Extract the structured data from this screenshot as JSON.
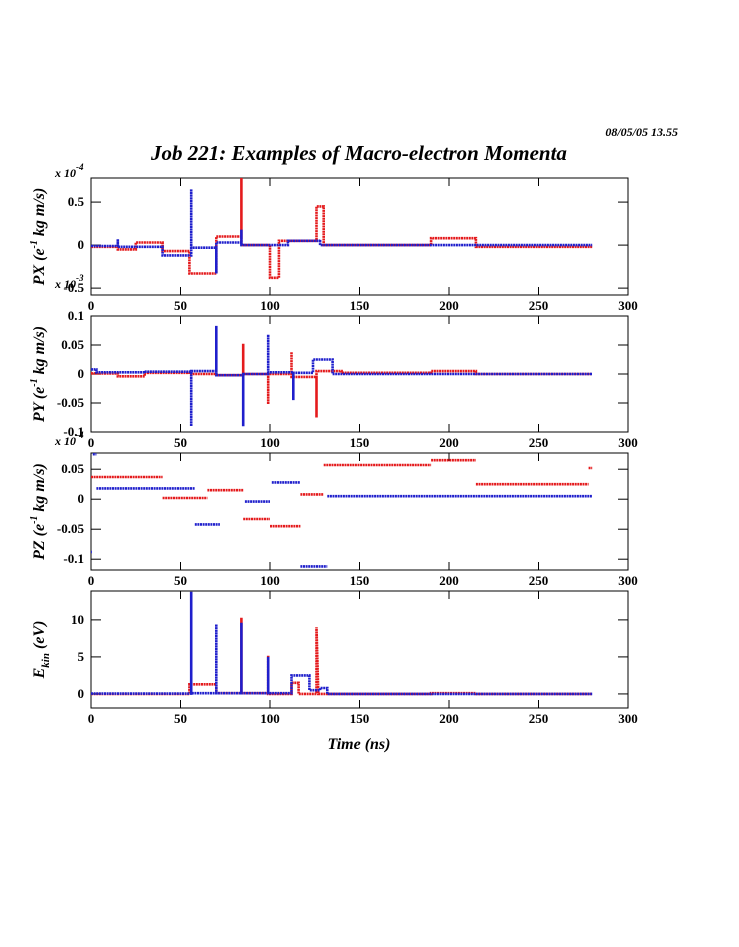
{
  "timestamp": "08/05/05   13.55",
  "title": "Job 221: Examples of Macro-electron Momenta",
  "chart_data": [
    {
      "type": "line",
      "ylabel": {
        "main": "PX (e",
        "sup": "-1",
        "rest": " kg m/s)"
      },
      "multiplier": {
        "main": "x 10",
        "sup": "-4"
      },
      "xlim": [
        0,
        300
      ],
      "xticks": [
        0,
        50,
        100,
        150,
        200,
        250,
        300
      ],
      "ylim": [
        -0.58,
        0.78
      ],
      "yticks": [
        -0.5,
        0,
        0.5
      ],
      "series": [
        {
          "color": "#e41a1c",
          "x": [
            0,
            15,
            15,
            25,
            25,
            40,
            40,
            55,
            55,
            70,
            70,
            84,
            84,
            84,
            100,
            100,
            105,
            105,
            126,
            126,
            130,
            130,
            190,
            190,
            215,
            215,
            280
          ],
          "values": [
            -0.02,
            -0.02,
            -0.05,
            -0.05,
            0.03,
            0.03,
            -0.07,
            -0.07,
            -0.33,
            -0.33,
            0.1,
            0.1,
            0.78,
            0,
            0,
            -0.38,
            -0.38,
            0.05,
            0.05,
            0.45,
            0.45,
            0,
            0,
            0.08,
            0.08,
            -0.02,
            -0.02
          ]
        },
        {
          "color": "#1f1fcc",
          "x": [
            0,
            15,
            15,
            15,
            40,
            40,
            56,
            56,
            56,
            70,
            70,
            70,
            84,
            84,
            84,
            110,
            110,
            128,
            128,
            128,
            280
          ],
          "values": [
            -0.01,
            -0.01,
            0.07,
            -0.02,
            -0.02,
            -0.12,
            -0.12,
            0.65,
            -0.03,
            -0.03,
            -0.33,
            0.03,
            0.03,
            0.18,
            0,
            0,
            0.05,
            0.05,
            0.06,
            0,
            0
          ]
        }
      ]
    },
    {
      "type": "line",
      "ylabel": {
        "main": "PY (e",
        "sup": "-1",
        "rest": " kg m/s)"
      },
      "multiplier": {
        "main": "x 10",
        "sup": "-3"
      },
      "xlim": [
        0,
        300
      ],
      "xticks": [
        0,
        50,
        100,
        150,
        200,
        250,
        300
      ],
      "ylim": [
        -0.1,
        0.1
      ],
      "yticks": [
        -0.1,
        -0.05,
        0,
        0.05,
        0.1
      ],
      "series": [
        {
          "color": "#e41a1c",
          "x": [
            0,
            15,
            15,
            30,
            30,
            55,
            55,
            70,
            70,
            85,
            85,
            85,
            99,
            99,
            99,
            112,
            112,
            112,
            126,
            126,
            126,
            140,
            140,
            190,
            190,
            215,
            215,
            280
          ],
          "values": [
            0.001,
            0.001,
            -0.004,
            -0.004,
            0.002,
            0.002,
            0,
            0,
            -0.002,
            -0.002,
            0.052,
            0,
            0,
            -0.052,
            0,
            0,
            0.038,
            -0.005,
            -0.005,
            -0.075,
            0.005,
            0.005,
            0.002,
            0.002,
            0.005,
            0.005,
            0,
            0
          ]
        },
        {
          "color": "#1f1fcc",
          "x": [
            0,
            3,
            3,
            30,
            30,
            56,
            56,
            56,
            70,
            70,
            70,
            85,
            85,
            85,
            99,
            99,
            99,
            113,
            113,
            113,
            124,
            124,
            135,
            135,
            280
          ],
          "values": [
            0.008,
            0.008,
            0.003,
            0.003,
            0.004,
            0.004,
            -0.09,
            0.005,
            0.005,
            0.083,
            -0.002,
            -0.002,
            -0.09,
            0,
            0,
            0.068,
            0.003,
            0.003,
            -0.045,
            0.002,
            0.002,
            0.025,
            0.025,
            0,
            0
          ]
        }
      ]
    },
    {
      "type": "line",
      "ylabel": {
        "main": "PZ (e",
        "sup": "-1",
        "rest": " kg m/s)"
      },
      "multiplier": {
        "main": "x 10",
        "sup": "-4"
      },
      "xlim": [
        0,
        300
      ],
      "xticks": [
        0,
        50,
        100,
        150,
        200,
        250,
        300
      ],
      "ylim": [
        -0.118,
        0.077
      ],
      "yticks": [
        -0.1,
        -0.05,
        0,
        0.05
      ],
      "series": [
        {
          "color": "#e41a1c",
          "x": [
            0,
            40,
            40,
            40,
            65,
            65,
            65,
            85,
            85,
            85,
            100,
            100,
            100,
            117,
            117,
            117,
            130,
            130,
            130,
            190,
            190,
            190,
            215,
            215,
            215,
            278,
            278,
            278,
            280
          ],
          "values": [
            0.037,
            0.037,
            null,
            0.002,
            0.002,
            null,
            0.015,
            0.015,
            null,
            -0.033,
            -0.033,
            null,
            -0.045,
            -0.045,
            null,
            0.008,
            0.008,
            null,
            0.057,
            0.057,
            null,
            0.065,
            0.065,
            null,
            0.025,
            0.025,
            null,
            0.052,
            0.052
          ]
        },
        {
          "color": "#1f1fcc",
          "x": [
            0,
            0.5,
            0.5,
            1,
            3,
            3,
            3,
            58,
            58,
            58,
            72,
            72,
            86,
            100,
            100,
            101,
            117,
            117,
            117,
            132,
            132,
            132,
            280
          ],
          "values": [
            -0.088,
            -0.088,
            null,
            0.075,
            0.075,
            null,
            0.018,
            0.018,
            null,
            -0.042,
            -0.042,
            null,
            -0.004,
            -0.004,
            null,
            0.028,
            0.028,
            null,
            -0.112,
            -0.112,
            null,
            0.005,
            0.005
          ]
        }
      ]
    },
    {
      "type": "line",
      "ylabel": {
        "main": "E",
        "sub": "kin",
        "rest": " (eV)"
      },
      "xlabel": "Time (ns)",
      "xlim": [
        0,
        300
      ],
      "xticks": [
        0,
        50,
        100,
        150,
        200,
        250,
        300
      ],
      "ylim": [
        -1.9,
        13.9
      ],
      "yticks": [
        0,
        5,
        10
      ],
      "series": [
        {
          "color": "#e41a1c",
          "x": [
            0,
            55,
            55,
            70,
            70,
            84,
            84,
            84,
            99,
            99,
            99,
            112,
            112,
            116,
            116,
            126,
            126,
            127,
            190,
            190,
            215,
            215,
            280
          ],
          "values": [
            0,
            0,
            1.3,
            1.3,
            0.1,
            0.1,
            10.3,
            0.1,
            0.1,
            5.2,
            0,
            0,
            1.5,
            1.5,
            0,
            0,
            9,
            0,
            0,
            0.1,
            0.1,
            0,
            0
          ]
        },
        {
          "color": "#1f1fcc",
          "x": [
            0,
            56,
            56,
            56,
            70,
            70,
            70,
            84,
            84,
            84,
            99,
            99,
            99,
            112,
            112,
            122,
            122,
            128,
            128,
            132,
            132,
            280
          ],
          "values": [
            0.05,
            0.05,
            13.8,
            0.1,
            0.1,
            9.4,
            0.1,
            0.1,
            9.6,
            0.1,
            0.1,
            5,
            0.1,
            0.1,
            2.5,
            2.5,
            0.5,
            0.5,
            0.8,
            0.8,
            0,
            0
          ]
        }
      ]
    }
  ]
}
